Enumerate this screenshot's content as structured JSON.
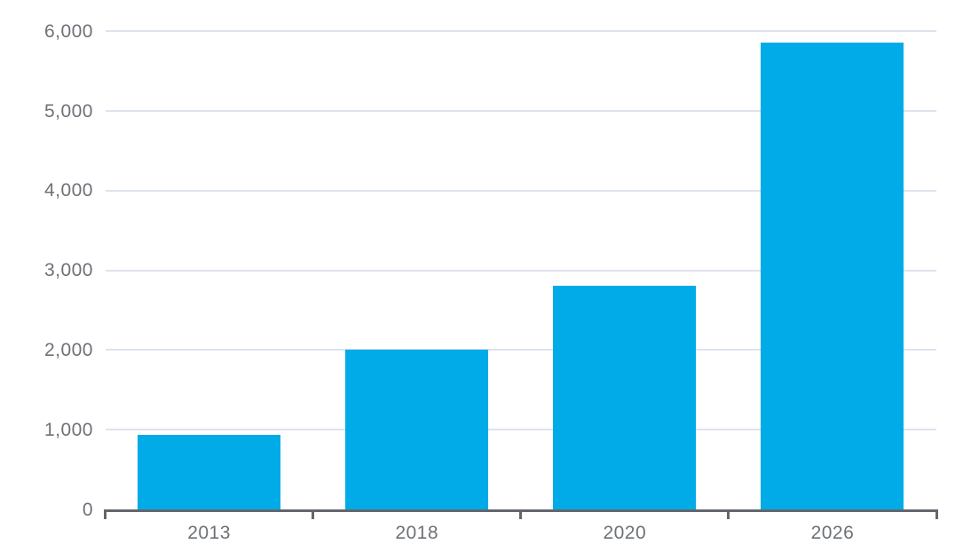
{
  "chart_data": {
    "type": "bar",
    "title": "",
    "xlabel": "",
    "ylabel": "",
    "categories": [
      "2013",
      "2018",
      "2020",
      "2026"
    ],
    "values": [
      930,
      2000,
      2810,
      5860
    ],
    "ylim": [
      0,
      6000
    ],
    "ytick_interval": 1000,
    "ytick_labels": [
      "0",
      "1,000",
      "2,000",
      "3,000",
      "4,000",
      "5,000",
      "6,000"
    ],
    "grid": "horizontal",
    "legend": "none",
    "colors": {
      "bar": "#00abe7",
      "gridline": "#dee2f0",
      "axis": "#63676d",
      "tick_label": "#6d7177"
    }
  }
}
